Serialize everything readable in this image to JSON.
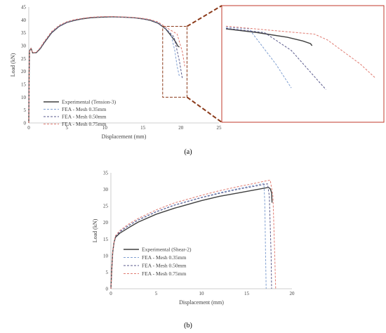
{
  "colors": {
    "experimental": "#404040",
    "fea_035": "#7f9fd1",
    "fea_050": "#5a5a8c",
    "fea_075": "#e07a70",
    "zoom_frame": "#c0392b",
    "zoom_connector": "#8b3a1a"
  },
  "chart_data": [
    {
      "type": "line",
      "panel": "(a)",
      "xlabel": "Displacement (mm)",
      "ylabel": "Load (kN)",
      "xlim": [
        0,
        25
      ],
      "ylim": [
        0,
        45
      ],
      "xticks": [
        "0",
        "5",
        "10",
        "15",
        "20",
        "25"
      ],
      "yticks": [
        "0",
        "5",
        "10",
        "15",
        "20",
        "25",
        "30",
        "35",
        "40",
        "45"
      ],
      "legend_position": "lower-left",
      "inset": "zoomed view of the drop region near displacement 18-20.5 mm",
      "series": [
        {
          "name": "Experimental (Tension-3)",
          "style": "solid",
          "points": [
            [
              0,
              0
            ],
            [
              0.05,
              20
            ],
            [
              0.1,
              28
            ],
            [
              0.3,
              29
            ],
            [
              0.5,
              27.2
            ],
            [
              1,
              27.3
            ],
            [
              1.5,
              28.8
            ],
            [
              2,
              31
            ],
            [
              3,
              35
            ],
            [
              4,
              37.5
            ],
            [
              5,
              39
            ],
            [
              6,
              39.8
            ],
            [
              7,
              40.4
            ],
            [
              8,
              40.8
            ],
            [
              9,
              41.0
            ],
            [
              10,
              41.1
            ],
            [
              11,
              41.2
            ],
            [
              12,
              41.1
            ],
            [
              13,
              41.0
            ],
            [
              14,
              40.8
            ],
            [
              15,
              40.4
            ],
            [
              16,
              39.8
            ],
            [
              17,
              38.7
            ],
            [
              18,
              36.5
            ],
            [
              18.8,
              33.5
            ],
            [
              19.3,
              31.5
            ],
            [
              19.6,
              29.8
            ],
            [
              19.8,
              29.5
            ]
          ]
        },
        {
          "name": "FEA - Mesh 0.35mm",
          "style": "dashed",
          "points": [
            [
              0,
              0
            ],
            [
              0.05,
              20
            ],
            [
              0.1,
              28
            ],
            [
              0.3,
              29
            ],
            [
              0.5,
              27.2
            ],
            [
              1,
              27.5
            ],
            [
              1.5,
              29
            ],
            [
              2,
              31.2
            ],
            [
              3,
              35.2
            ],
            [
              4,
              37.6
            ],
            [
              5,
              39.1
            ],
            [
              6,
              39.9
            ],
            [
              7,
              40.5
            ],
            [
              8,
              40.9
            ],
            [
              9,
              41.1
            ],
            [
              10,
              41.2
            ],
            [
              11,
              41.2
            ],
            [
              12,
              41.1
            ],
            [
              13,
              41.0
            ],
            [
              14,
              40.8
            ],
            [
              15,
              40.4
            ],
            [
              16,
              39.9
            ],
            [
              17,
              38.8
            ],
            [
              18,
              36.6
            ],
            [
              18.7,
              34.4
            ],
            [
              19.2,
              28
            ],
            [
              19.5,
              22
            ],
            [
              19.8,
              18
            ]
          ]
        },
        {
          "name": "FEA - Mesh 0.50mm",
          "style": "dashed",
          "points": [
            [
              0,
              0
            ],
            [
              0.05,
              20
            ],
            [
              0.1,
              28
            ],
            [
              0.3,
              29
            ],
            [
              0.5,
              27.2
            ],
            [
              1,
              27.4
            ],
            [
              1.5,
              28.9
            ],
            [
              2,
              31.1
            ],
            [
              3,
              35.1
            ],
            [
              4,
              37.5
            ],
            [
              5,
              39.0
            ],
            [
              6,
              39.9
            ],
            [
              7,
              40.5
            ],
            [
              8,
              40.9
            ],
            [
              9,
              41.1
            ],
            [
              10,
              41.2
            ],
            [
              11,
              41.2
            ],
            [
              12,
              41.1
            ],
            [
              13,
              41.0
            ],
            [
              14,
              40.8
            ],
            [
              15,
              40.4
            ],
            [
              16,
              39.9
            ],
            [
              17,
              38.8
            ],
            [
              18,
              36.6
            ],
            [
              19.1,
              33.4
            ],
            [
              19.8,
              24
            ],
            [
              20.2,
              17
            ]
          ]
        },
        {
          "name": "FEA - Mesh 0.75mm",
          "style": "dashed",
          "points": [
            [
              0,
              0
            ],
            [
              0.05,
              20
            ],
            [
              0.1,
              28
            ],
            [
              0.3,
              29
            ],
            [
              0.5,
              27.2
            ],
            [
              1,
              27.5
            ],
            [
              1.5,
              29.2
            ],
            [
              2,
              31.5
            ],
            [
              3,
              35.5
            ],
            [
              4,
              37.9
            ],
            [
              5,
              39.3
            ],
            [
              6,
              40.1
            ],
            [
              7,
              40.6
            ],
            [
              8,
              41.0
            ],
            [
              9,
              41.2
            ],
            [
              10,
              41.3
            ],
            [
              11,
              41.3
            ],
            [
              12,
              41.2
            ],
            [
              13,
              41.1
            ],
            [
              14,
              40.9
            ],
            [
              15,
              40.6
            ],
            [
              16,
              40.1
            ],
            [
              17,
              39.2
            ],
            [
              18,
              37.2
            ],
            [
              19.5,
              34.5
            ],
            [
              20.2,
              27.5
            ],
            [
              20.5,
              22
            ]
          ]
        }
      ]
    },
    {
      "type": "line",
      "panel": "(b)",
      "xlabel": "Displacement (mm)",
      "ylabel": "Load (kN)",
      "xlim": [
        0,
        20
      ],
      "ylim": [
        0,
        35
      ],
      "xticks": [
        "0",
        "5",
        "10",
        "15",
        "20"
      ],
      "yticks": [
        "0",
        "5",
        "10",
        "15",
        "20",
        "25",
        "30",
        "35"
      ],
      "legend_position": "lower-center",
      "series": [
        {
          "name": "Experimental (Shear-2)",
          "style": "solid",
          "points": [
            [
              0,
              0
            ],
            [
              0.1,
              6
            ],
            [
              0.2,
              11
            ],
            [
              0.35,
              14
            ],
            [
              0.5,
              15.5
            ],
            [
              1,
              16.8
            ],
            [
              2,
              18.5
            ],
            [
              3,
              20.1
            ],
            [
              5,
              22.5
            ],
            [
              7,
              24.3
            ],
            [
              10,
              26.6
            ],
            [
              12,
              27.9
            ],
            [
              14,
              28.9
            ],
            [
              16,
              29.9
            ],
            [
              17,
              30.4
            ],
            [
              17.4,
              30.6
            ],
            [
              17.6,
              30.2
            ],
            [
              17.75,
              29
            ],
            [
              17.8,
              26
            ]
          ]
        },
        {
          "name": "FEA - Mesh 0.35mm",
          "style": "dashed",
          "points": [
            [
              0,
              0
            ],
            [
              0.1,
              6
            ],
            [
              0.2,
              11
            ],
            [
              0.35,
              14
            ],
            [
              0.5,
              15.8
            ],
            [
              1,
              17.3
            ],
            [
              2,
              19.2
            ],
            [
              3,
              20.8
            ],
            [
              5,
              23.3
            ],
            [
              7,
              25.3
            ],
            [
              10,
              27.6
            ],
            [
              12,
              29.0
            ],
            [
              14,
              30.2
            ],
            [
              16,
              31.3
            ],
            [
              16.9,
              31.8
            ],
            [
              17.0,
              26
            ],
            [
              17.1,
              8
            ],
            [
              17.15,
              0
            ]
          ]
        },
        {
          "name": "FEA - Mesh 0.50mm",
          "style": "dashed",
          "points": [
            [
              0,
              0
            ],
            [
              0.1,
              6
            ],
            [
              0.2,
              11
            ],
            [
              0.35,
              14
            ],
            [
              0.5,
              15.8
            ],
            [
              1,
              17.2
            ],
            [
              2,
              19.1
            ],
            [
              3,
              20.7
            ],
            [
              5,
              23.2
            ],
            [
              7,
              25.2
            ],
            [
              10,
              27.5
            ],
            [
              12,
              28.8
            ],
            [
              14,
              30.0
            ],
            [
              16,
              31.0
            ],
            [
              17.3,
              31.7
            ],
            [
              17.5,
              28
            ],
            [
              17.7,
              10
            ],
            [
              17.75,
              0
            ]
          ]
        },
        {
          "name": "FEA - Mesh 0.75mm",
          "style": "dashed",
          "points": [
            [
              0,
              0
            ],
            [
              0.1,
              6
            ],
            [
              0.2,
              11
            ],
            [
              0.35,
              14
            ],
            [
              0.5,
              16
            ],
            [
              1,
              17.6
            ],
            [
              2,
              19.6
            ],
            [
              3,
              21.2
            ],
            [
              5,
              23.8
            ],
            [
              7,
              25.9
            ],
            [
              10,
              28.2
            ],
            [
              12,
              29.6
            ],
            [
              14,
              30.8
            ],
            [
              16,
              31.9
            ],
            [
              17.2,
              32.6
            ],
            [
              17.6,
              32.8
            ],
            [
              17.9,
              28
            ],
            [
              18.1,
              10
            ],
            [
              18.2,
              0
            ]
          ]
        }
      ]
    }
  ],
  "captions": {
    "a": "(a)",
    "b": "(b)"
  }
}
